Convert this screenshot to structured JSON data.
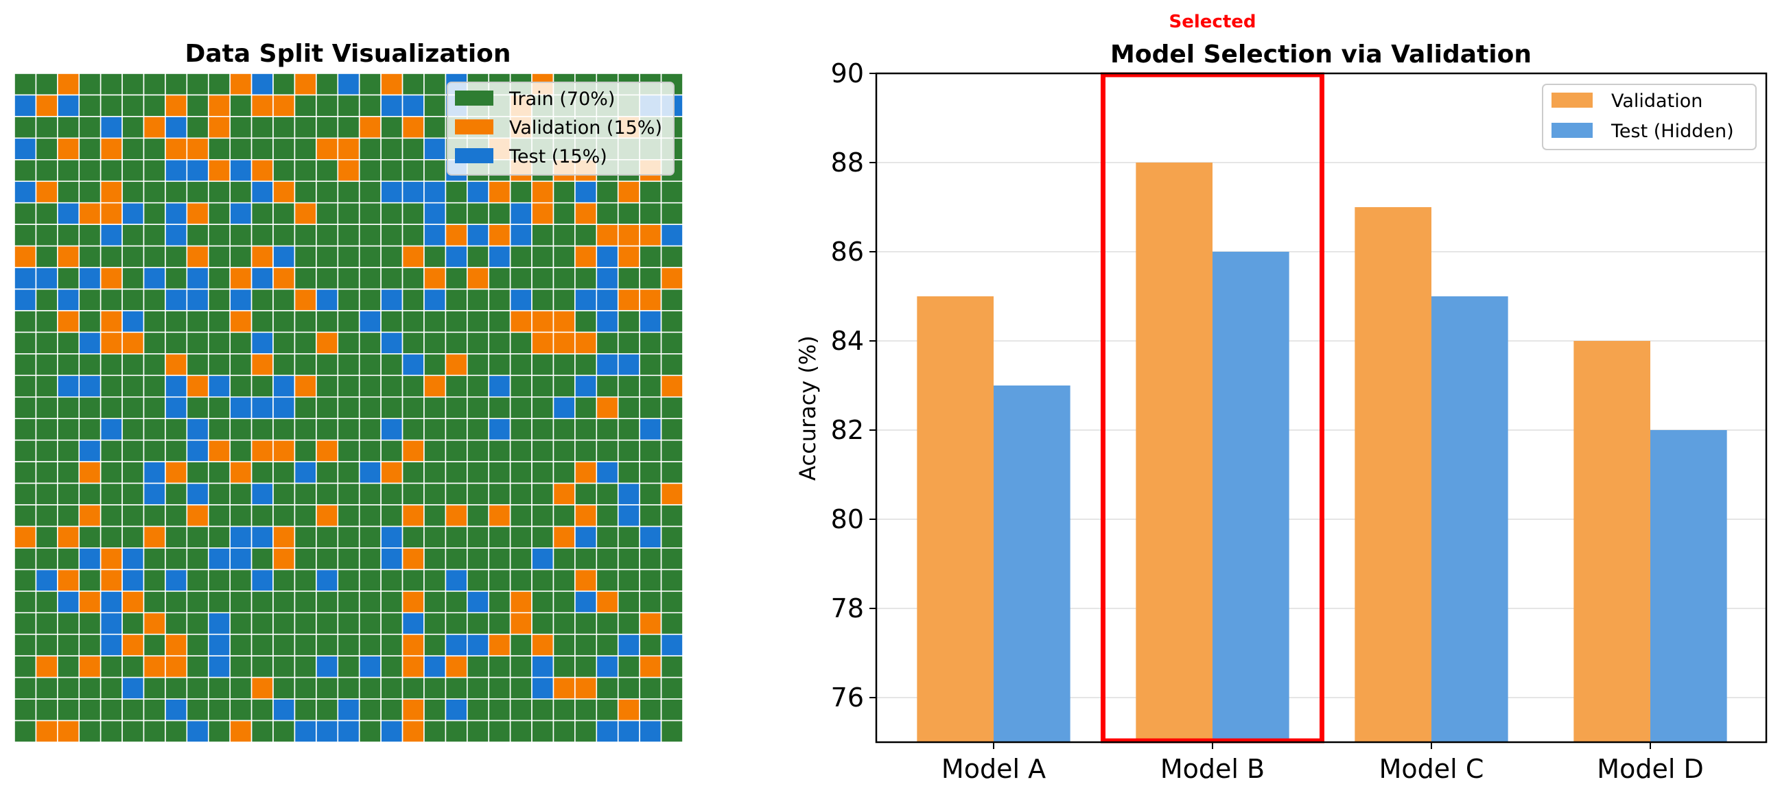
{
  "chart_data": [
    {
      "type": "heatmap",
      "title": "Data Split Visualization",
      "rows": 31,
      "cols": 31,
      "category_codes": {
        "0": "Train",
        "1": "Validation",
        "2": "Test"
      },
      "colors": {
        "0": "#2E7D32",
        "1": "#F57C00",
        "2": "#1976D2"
      },
      "grid": [
        "GGOGGGGGGGOBGOGBGOGGBGGGOGGGGGG",
        "BOBGGGGOGOGOOGGGGBBGBGGOGGGGGBB",
        "GGGGBGOBGOGGGGGGOGOGGGGOGGGGOGG",
        "BGOGOGGOOGGGGGOOGGGBGGOGGGGGGGG",
        "GGGGGGGBBOBOGGGOGGGGBGGOGOOGGOG",
        "BOGGOGGGGGGBOGGGGBBBGBOGOGBGOGG",
        "GGBOOBGBOGBGGOGGGGGBGGGBOGOGGGG",
        "GGGGBGGBGGGGGGGGGGGBOBOBGGGOOOB",
        "OGOGGGGGOGGOBGGGGGOGBGBGGGOBOGG",
        "BBGBOGBGBGOBOGGGGGGOGOGGGGGBGGO",
        "BGBGGGGBBGBGGOBGGBGBGGGBGGBBOOG",
        "GGOGOBGGGGOGGGGGBGGGGGGOOOGBGBG",
        "GGGBOOGGGGGBGGOGGBGGGGGGOOOGGGG",
        "GGGGGGGOGGGOGGGGGGBGOGGGGGGBBGG",
        "GGBBGGGBOBGGBOGGGGGOGGBGGGBGGGO",
        "GGGGGGGBGGBBBGGGGGGGGGGGGBGOGGG",
        "GGGGBGGGBGGGGGGGGBGGGGBGGGGGGBG",
        "GGGBGGGGBOGOOGOGGGOGGGGGGGGGGGG",
        "GGGOGGBOGGOGGBGGBOGGGGGGGGOBGGG",
        "GGGGGGBGBGGBGGGGGGGGGGGGGOGGBGO",
        "GGGOGGGGOGGGGGOGGGOGOGOGGGOGBGG",
        "OGOGGGOGGGBBOGGGGBGGGGGGGOBGGBG",
        "GGGBOBGGGBBGOGGGGBOGGGGGBGGGGGG",
        "GBOGOBGBGGGBGGBGGGGGBGGGGGOGGGG",
        "GGBOBOGGGGGGGGGGGGOGGBGOGGBOGGG",
        "GGGGBGOGGBGGGGGGGGBGGGGOGGGGGOG",
        "GGGGBOGOGBGGGGGGGGOGBBOGOGGGBGB",
        "GOGOGGOOGBGGGGBGBGOBOGGGBGGBGOG",
        "GGGGGBGGGGGOGGGGGGGGGGGGBOOGGGG",
        "GGGGGGGBGGGGBGGBGGOGBGGGGGGGOGG",
        "GOOGGGGGBGOGGBBBGBOGGGGGGGGBBBG"
      ],
      "legend": {
        "placement": "top-right",
        "entries": [
          {
            "label": "Train (70%)",
            "code": "0"
          },
          {
            "label": "Validation (15%)",
            "code": "1"
          },
          {
            "label": "Test (15%)",
            "code": "2"
          }
        ]
      }
    },
    {
      "type": "bar",
      "title": "Model Selection via Validation",
      "xlabel": "",
      "ylabel": "Accuracy (%)",
      "ylim": [
        75,
        90
      ],
      "yticks": [
        76,
        78,
        80,
        82,
        84,
        86,
        88,
        90
      ],
      "grid": "y",
      "categories": [
        "Model A",
        "Model B",
        "Model C",
        "Model D"
      ],
      "series": [
        {
          "name": "Validation",
          "values": [
            85,
            88,
            87,
            84
          ],
          "color": "#F5A34D"
        },
        {
          "name": "Test (Hidden)",
          "values": [
            83,
            86,
            85,
            82
          ],
          "color": "#5E9FDF"
        }
      ],
      "legend": {
        "placement": "top-right"
      },
      "annotations": [
        {
          "type": "highlight-box",
          "category": "Model B",
          "color": "#FF0000"
        },
        {
          "type": "text",
          "text": "Selected",
          "category": "Model B",
          "position": "above",
          "color": "#FF0000"
        }
      ]
    }
  ]
}
